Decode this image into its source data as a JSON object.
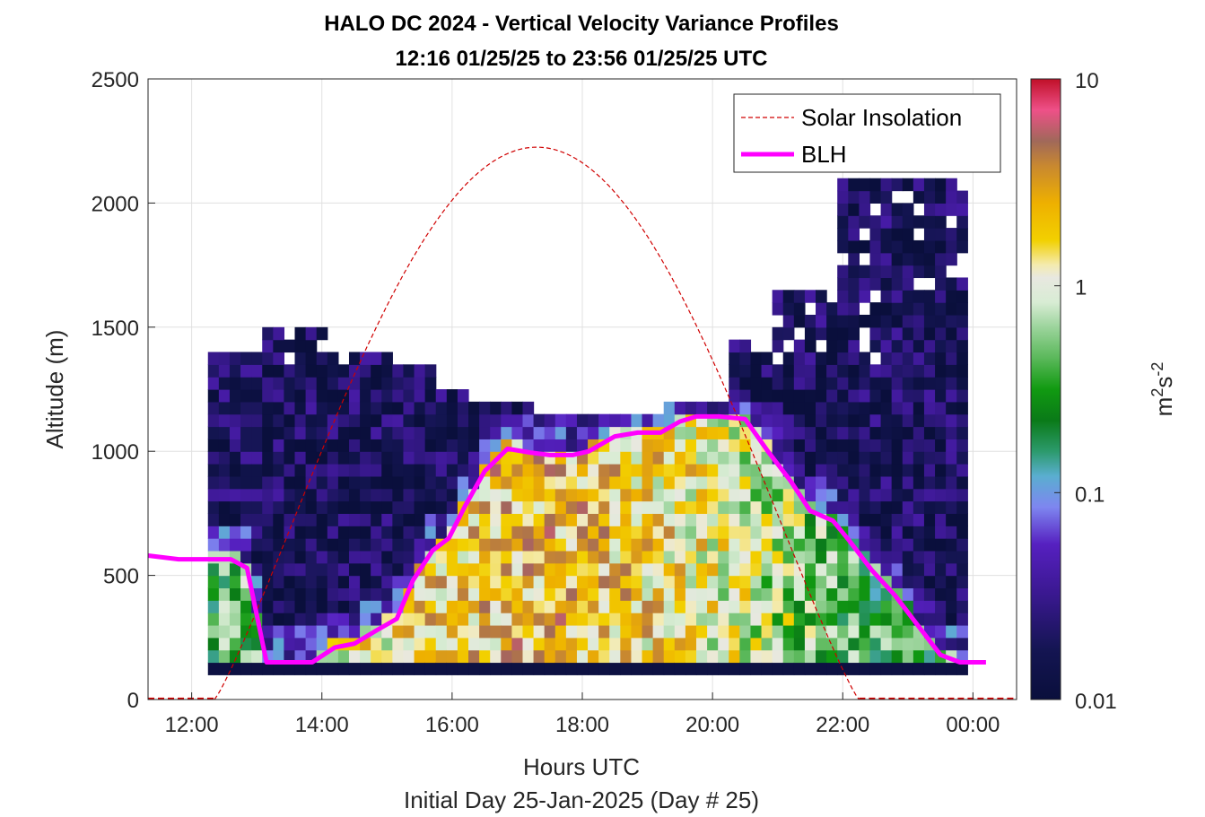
{
  "chart_data": {
    "type": "heatmap",
    "title": "HALO DC 2024 - Vertical Velocity Variance Profiles",
    "subtitle": "12:16 01/25/25 to 23:56 01/25/25  UTC",
    "xlabel": "Hours UTC",
    "xlabel2": "Initial Day 25-Jan-2025 (Day # 25)",
    "ylabel": "Altitude (m)",
    "colorbar_label_base": "m",
    "colorbar_label_sup1": "2",
    "colorbar_label_mid": "s",
    "colorbar_label_sup2": "-2",
    "x_ticks": [
      "12:00",
      "14:00",
      "16:00",
      "18:00",
      "20:00",
      "22:00",
      "00:00"
    ],
    "x_tick_hours": [
      12,
      14,
      16,
      18,
      20,
      22,
      24
    ],
    "xlim_hours": [
      11.33,
      24.67
    ],
    "y_ticks": [
      0,
      500,
      1000,
      1500,
      2000,
      2500
    ],
    "ylim": [
      0,
      2500
    ],
    "colorbar_ticks": [
      "0.01",
      "0.1",
      "1",
      "10"
    ],
    "colorbar_tick_values": [
      0.01,
      0.1,
      1,
      10
    ],
    "colorbar_scale": "log",
    "grid": true,
    "legend_position": "top-right",
    "legend": [
      {
        "label": "Solar Insolation",
        "style": "dashed",
        "color": "#d00000"
      },
      {
        "label": "BLH",
        "style": "solid",
        "color": "#ff00ff"
      }
    ],
    "colormap_stops": [
      [
        0.0,
        "#0a0f3c"
      ],
      [
        0.08,
        "#141552"
      ],
      [
        0.17,
        "#3a1890"
      ],
      [
        0.25,
        "#5620c0"
      ],
      [
        0.31,
        "#7e86f0"
      ],
      [
        0.36,
        "#5aaed0"
      ],
      [
        0.4,
        "#2c9a6c"
      ],
      [
        0.45,
        "#0a7a18"
      ],
      [
        0.5,
        "#119a11"
      ],
      [
        0.55,
        "#5ab85a"
      ],
      [
        0.6,
        "#9cd49c"
      ],
      [
        0.64,
        "#d8ecd4"
      ],
      [
        0.68,
        "#e8e8e0"
      ],
      [
        0.7,
        "#f4ebb0"
      ],
      [
        0.74,
        "#f2d000"
      ],
      [
        0.8,
        "#eeb000"
      ],
      [
        0.86,
        "#c88830"
      ],
      [
        0.9,
        "#a0685a"
      ],
      [
        0.95,
        "#ee5088"
      ],
      [
        1.0,
        "#c01028"
      ]
    ],
    "series": [
      {
        "name": "BLH",
        "x_hours": [
          11.33,
          11.8,
          12.2,
          12.6,
          12.85,
          13.15,
          13.5,
          13.85,
          14.2,
          14.5,
          14.85,
          15.15,
          15.4,
          15.7,
          15.95,
          16.2,
          16.5,
          16.85,
          17.2,
          17.5,
          17.85,
          18.1,
          18.5,
          18.85,
          19.2,
          19.5,
          19.75,
          20.1,
          20.5,
          20.85,
          21.2,
          21.5,
          21.85,
          22.1,
          22.45,
          22.8,
          23.15,
          23.5,
          23.8,
          24.2
        ],
        "y_m": [
          580,
          565,
          565,
          565,
          530,
          150,
          150,
          150,
          210,
          225,
          280,
          325,
          480,
          600,
          650,
          780,
          920,
          1010,
          995,
          985,
          985,
          1000,
          1060,
          1075,
          1075,
          1120,
          1140,
          1140,
          1130,
          1000,
          880,
          760,
          720,
          640,
          520,
          420,
          300,
          180,
          150,
          150
        ]
      },
      {
        "name": "Solar Insolation",
        "peak_altitude_m": 2225,
        "peak_hours": 17.3,
        "visible_hours": [
          12.35,
          22.25
        ]
      }
    ]
  }
}
